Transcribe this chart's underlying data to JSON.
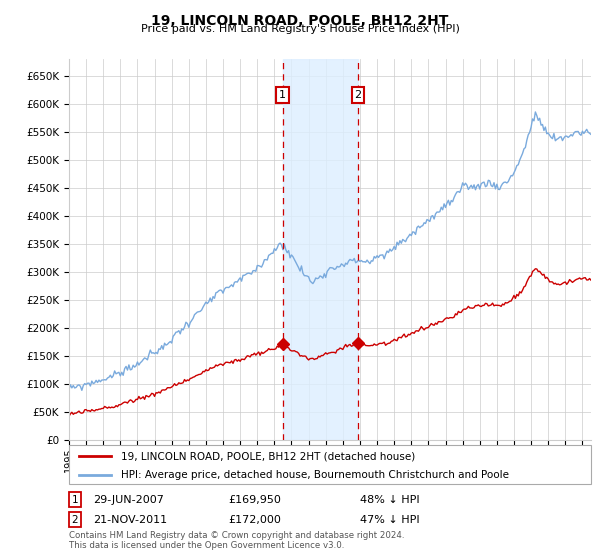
{
  "title": "19, LINCOLN ROAD, POOLE, BH12 2HT",
  "subtitle": "Price paid vs. HM Land Registry's House Price Index (HPI)",
  "legend_red": "19, LINCOLN ROAD, POOLE, BH12 2HT (detached house)",
  "legend_blue": "HPI: Average price, detached house, Bournemouth Christchurch and Poole",
  "annotation1_label": "1",
  "annotation1_date": "29-JUN-2007",
  "annotation1_price": "£169,950",
  "annotation1_hpi": "48% ↓ HPI",
  "annotation2_label": "2",
  "annotation2_date": "21-NOV-2011",
  "annotation2_price": "£172,000",
  "annotation2_hpi": "47% ↓ HPI",
  "sale1_year": 2007.49,
  "sale1_price": 169950,
  "sale2_year": 2011.89,
  "sale2_price": 172000,
  "footnote": "Contains HM Land Registry data © Crown copyright and database right 2024.\nThis data is licensed under the Open Government Licence v3.0.",
  "red_color": "#cc0000",
  "blue_color": "#7aaadd",
  "shade_color": "#ddeeff",
  "grid_color": "#cccccc",
  "background_color": "#ffffff",
  "ylim_max": 680000,
  "xlim_start": 1995.0,
  "xlim_end": 2025.5
}
